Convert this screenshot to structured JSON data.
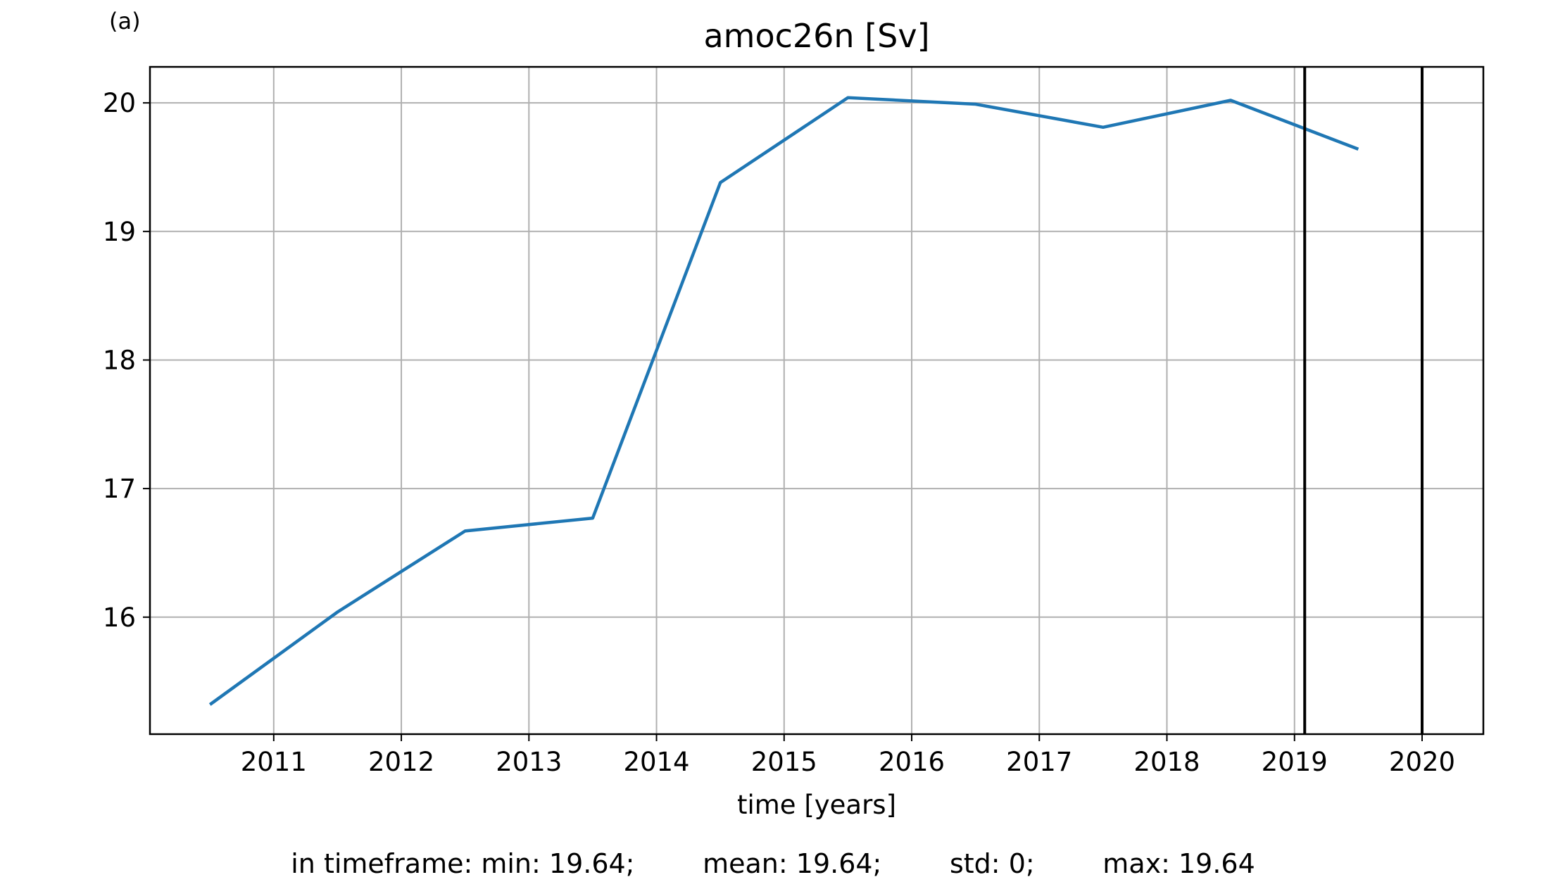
{
  "panel_label": "(a)",
  "stats_text": "in timeframe: min: 19.64;        mean: 19.64;        std: 0;        max: 19.64",
  "chart_data": {
    "type": "line",
    "title": "amoc26n [Sv]",
    "xlabel": "time [years]",
    "ylabel": "",
    "xlim": [
      2010.03,
      2020.48
    ],
    "ylim": [
      15.09,
      20.28
    ],
    "xticks": [
      2011,
      2012,
      2013,
      2014,
      2015,
      2016,
      2017,
      2018,
      2019,
      2020
    ],
    "yticks": [
      16,
      17,
      18,
      19,
      20
    ],
    "grid": true,
    "series_color": "#1f77b4",
    "series": [
      {
        "x": [
          2010.5,
          2011.5,
          2012.5,
          2013.5,
          2014.5,
          2015.5,
          2016.5,
          2017.5,
          2018.5,
          2019.5
        ],
        "y": [
          15.32,
          16.04,
          16.67,
          16.77,
          19.38,
          20.04,
          19.99,
          19.81,
          20.02,
          19.64
        ]
      }
    ],
    "vertical_lines": [
      2019.08,
      2020.0
    ]
  }
}
